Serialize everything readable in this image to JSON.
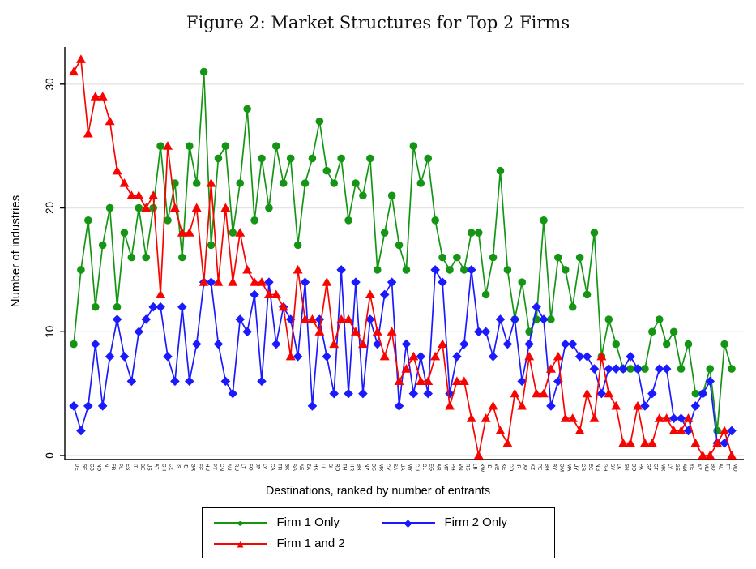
{
  "figure": {
    "title": "Figure 2: Market Structures for Top 2 Firms"
  },
  "chart_data": {
    "type": "line",
    "title": "Figure 2: Market Structures for Top 2 Firms",
    "xlabel": "Destinations, ranked by number of entrants",
    "ylabel": "Number of industries",
    "ylim": [
      0,
      33
    ],
    "yticks": [
      0,
      10,
      20,
      30
    ],
    "grid": true,
    "legend_position": "bottom",
    "gridline_color": "#e4e4e4",
    "categories": [
      "DE",
      "SE",
      "GB",
      "NO",
      "NL",
      "FR",
      "PL",
      "ES",
      "IT",
      "BE",
      "US",
      "AT",
      "CH",
      "CZ",
      "IS",
      "IE",
      "GR",
      "EE",
      "HU",
      "PT",
      "CN",
      "AU",
      "RU",
      "LT",
      "FO",
      "JP",
      "LV",
      "CA",
      "TR",
      "SK",
      "SG",
      "AE",
      "ZA",
      "HK",
      "LI",
      "SI",
      "RO",
      "TH",
      "HR",
      "BR",
      "NZ",
      "BG",
      "MX",
      "CY",
      "SA",
      "UA",
      "MY",
      "CU",
      "CL",
      "EG",
      "AR",
      "MT",
      "PH",
      "VN",
      "RS",
      "LB",
      "KW",
      "ID",
      "VE",
      "KE",
      "CO",
      "IR",
      "JO",
      "KZ",
      "PE",
      "BH",
      "BY",
      "OM",
      "MA",
      "UY",
      "CR",
      "EC",
      "NG",
      "GH",
      "SY",
      "LK",
      "SN",
      "DO",
      "PA",
      "GZ",
      "GT",
      "MK",
      "LY",
      "GE",
      "AM",
      "YE",
      "AZ",
      "MU",
      "BD",
      "AL",
      "TT",
      "MD"
    ],
    "series": [
      {
        "name": "Firm 1 Only",
        "marker": "circle",
        "color": "#149614",
        "values": [
          9,
          15,
          19,
          12,
          17,
          20,
          12,
          18,
          16,
          20,
          16,
          20,
          25,
          19,
          22,
          16,
          25,
          22,
          31,
          17,
          24,
          25,
          18,
          22,
          28,
          19,
          24,
          20,
          25,
          22,
          24,
          17,
          22,
          24,
          27,
          23,
          22,
          24,
          19,
          22,
          21,
          24,
          15,
          18,
          21,
          17,
          15,
          25,
          22,
          24,
          19,
          16,
          15,
          16,
          15,
          18,
          18,
          13,
          16,
          23,
          15,
          11,
          14,
          10,
          11,
          19,
          11,
          16,
          15,
          12,
          16,
          13,
          18,
          8,
          11,
          9,
          7,
          7,
          7,
          7,
          10,
          11,
          9,
          10,
          7,
          9,
          5,
          5,
          7,
          2,
          9,
          7
        ]
      },
      {
        "name": "Firm 2 Only",
        "marker": "diamond",
        "color": "#1b1aff",
        "values": [
          4,
          2,
          4,
          9,
          4,
          8,
          11,
          8,
          6,
          10,
          11,
          12,
          12,
          8,
          6,
          12,
          6,
          9,
          14,
          14,
          9,
          6,
          5,
          11,
          10,
          13,
          6,
          14,
          9,
          12,
          11,
          8,
          14,
          4,
          11,
          8,
          5,
          15,
          5,
          14,
          5,
          11,
          9,
          13,
          14,
          4,
          9,
          5,
          8,
          5,
          15,
          14,
          5,
          8,
          9,
          15,
          10,
          10,
          8,
          11,
          9,
          11,
          6,
          9,
          12,
          11,
          4,
          6,
          9,
          9,
          8,
          8,
          7,
          5,
          7,
          7,
          7,
          8,
          7,
          4,
          5,
          7,
          7,
          3,
          3,
          2,
          4,
          5,
          6,
          1,
          1,
          2
        ]
      },
      {
        "name": "Firm 1 and 2",
        "marker": "triangle",
        "color": "#f80400",
        "values": [
          31,
          32,
          26,
          29,
          29,
          27,
          23,
          22,
          21,
          21,
          20,
          21,
          13,
          25,
          20,
          18,
          18,
          20,
          14,
          22,
          14,
          20,
          14,
          18,
          15,
          14,
          14,
          13,
          13,
          12,
          8,
          15,
          11,
          11,
          10,
          14,
          9,
          11,
          11,
          10,
          9,
          13,
          10,
          8,
          10,
          6,
          7,
          8,
          6,
          6,
          8,
          9,
          4,
          6,
          6,
          3,
          0,
          3,
          4,
          2,
          1,
          5,
          4,
          8,
          5,
          5,
          7,
          8,
          3,
          3,
          2,
          5,
          3,
          8,
          5,
          4,
          1,
          1,
          4,
          1,
          1,
          3,
          3,
          2,
          2,
          3,
          1,
          0,
          0,
          1,
          2,
          0
        ]
      }
    ]
  },
  "legend": {
    "marker_glyphs": {
      "circle": "●",
      "diamond": "◆",
      "triangle": "▲"
    }
  }
}
